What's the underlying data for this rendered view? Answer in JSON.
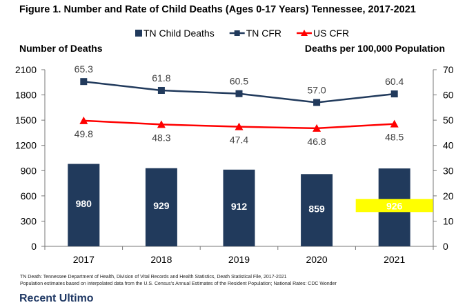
{
  "figure_title": "Figure 1.  Number and Rate of Child Deaths (Ages 0-17 Years) Tennessee, 2017-2021",
  "source_notes": [
    "TN Death: Tennessee Department of Health, Division of Vital Records and Health Statistics, Death Statistical File, 2017-2021",
    "Population estimates based on interpolated data from the U.S. Census's Annual Estimates of the Resident Population; National Rates: CDC Wonder"
  ],
  "next_section_heading": "Recent Ultimo",
  "colors": {
    "bar": "#213a5c",
    "tn_cfr": "#213a5c",
    "us_cfr": "#ff0000",
    "highlight": "#ffff00"
  },
  "chart_data": {
    "type": "bar",
    "categories": [
      "2017",
      "2018",
      "2019",
      "2020",
      "2021"
    ],
    "ylabel_left": "Number of Deaths",
    "ylabel_right": "Deaths per 100,000 Population",
    "ylim_left": [
      0,
      2100
    ],
    "yticks_left": [
      0,
      300,
      600,
      900,
      1200,
      1500,
      1800,
      2100
    ],
    "ylim_right": [
      0,
      70
    ],
    "yticks_right": [
      0,
      10,
      20,
      30,
      40,
      50,
      60,
      70
    ],
    "legend_position": "top-center",
    "grid": false,
    "highlighted_label": "2021",
    "series": [
      {
        "name": "TN Child Deaths",
        "type": "bar",
        "axis": "left",
        "values": [
          980,
          929,
          912,
          859,
          926
        ]
      },
      {
        "name": "TN CFR",
        "type": "line",
        "marker": "square",
        "axis": "right",
        "values": [
          65.3,
          61.8,
          60.5,
          57.0,
          60.4
        ]
      },
      {
        "name": "US CFR",
        "type": "line",
        "marker": "triangle",
        "axis": "right",
        "values": [
          49.8,
          48.3,
          47.4,
          46.8,
          48.5
        ]
      }
    ],
    "data_labels": {
      "TN Child Deaths": [
        "980",
        "929",
        "912",
        "859",
        "926"
      ],
      "TN CFR": [
        "65.3",
        "61.8",
        "60.5",
        "57.0",
        "60.4"
      ],
      "US CFR": [
        "49.8",
        "48.3",
        "47.4",
        "46.8",
        "48.5"
      ]
    }
  }
}
